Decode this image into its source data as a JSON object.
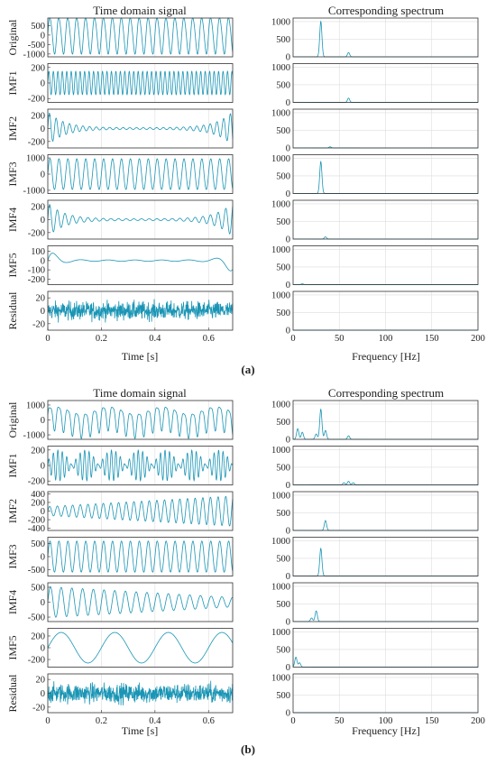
{
  "colors": {
    "signal": "#1a95b5",
    "grid": "#dddddd",
    "axis": "#333333"
  },
  "panels": [
    {
      "label": "(a)",
      "time_title": "Time domain signal",
      "spectrum_title": "Corresponding spectrum",
      "time_xlabel": "Time [s]",
      "spectrum_xlabel": "Frequency [Hz]",
      "time_xticks": [
        "0",
        "0.2",
        "0.4",
        "0.6"
      ],
      "spectrum_xticks": [
        "0",
        "50",
        "100",
        "150",
        "200"
      ],
      "spectrum_yticks": [
        "0",
        "500",
        "1000"
      ],
      "rows": [
        {
          "name": "Original",
          "yticks": [
            "500",
            "0",
            "-500",
            "-1000"
          ]
        },
        {
          "name": "IMF1",
          "yticks": [
            "200",
            "0",
            "-200"
          ]
        },
        {
          "name": "IMF2",
          "yticks": [
            "200",
            "0",
            "-200"
          ]
        },
        {
          "name": "IMF3",
          "yticks": [
            "1000",
            "0",
            "-1000"
          ]
        },
        {
          "name": "IMF4",
          "yticks": [
            "200",
            "0",
            "-200"
          ]
        },
        {
          "name": "IMF5",
          "yticks": [
            "100",
            "0",
            "-100",
            "-200"
          ]
        },
        {
          "name": "Residual",
          "yticks": [
            "20",
            "0",
            "-20"
          ]
        }
      ]
    },
    {
      "label": "(b)",
      "time_title": "Time domain signal",
      "spectrum_title": "Corresponding spectrum",
      "time_xlabel": "Time [s]",
      "spectrum_xlabel": "Frequency [Hz]",
      "time_xticks": [
        "0",
        "0.2",
        "0.4",
        "0.6"
      ],
      "spectrum_xticks": [
        "0",
        "50",
        "100",
        "150",
        "200"
      ],
      "spectrum_yticks": [
        "0",
        "500",
        "1000"
      ],
      "rows": [
        {
          "name": "Original",
          "yticks": [
            "1000",
            "0",
            "-1000"
          ]
        },
        {
          "name": "IMF1",
          "yticks": [
            "200",
            "0",
            "-200"
          ]
        },
        {
          "name": "IMF2",
          "yticks": [
            "400",
            "200",
            "0",
            "-200",
            "-400"
          ]
        },
        {
          "name": "IMF3",
          "yticks": [
            "500",
            "0",
            "-500"
          ]
        },
        {
          "name": "IMF4",
          "yticks": [
            "500",
            "0",
            "-500"
          ]
        },
        {
          "name": "IMF5",
          "yticks": [
            "200",
            "0",
            "-200"
          ]
        },
        {
          "name": "Residual",
          "yticks": [
            "20",
            "0",
            "-20"
          ]
        }
      ]
    }
  ],
  "chart_data": [
    {
      "panel": "(a)",
      "type": "line",
      "title": "Time domain signal",
      "xlabel": "Time [s]",
      "xlim": [
        0,
        0.69
      ],
      "series": [
        {
          "name": "Original",
          "ylim": [
            -1150,
            900
          ],
          "components": [
            {
              "amp": 950,
              "freq": 30
            },
            {
              "amp": 80,
              "freq": 60
            }
          ]
        },
        {
          "name": "IMF1",
          "ylim": [
            -250,
            250
          ],
          "components": [
            {
              "amp": 150,
              "freq": 60
            }
          ]
        },
        {
          "name": "IMF2",
          "ylim": [
            -300,
            300
          ],
          "edge_amp": 250,
          "edge_decay": 0.06,
          "freq": 40
        },
        {
          "name": "IMF3",
          "ylim": [
            -1200,
            1200
          ],
          "components": [
            {
              "amp": 950,
              "freq": 30
            }
          ]
        },
        {
          "name": "IMF4",
          "ylim": [
            -300,
            300
          ],
          "edge_amp": 250,
          "edge_decay": 0.06,
          "freq": 35
        },
        {
          "name": "IMF5",
          "ylim": [
            -260,
            160
          ],
          "edge_amp": 150,
          "edge_decay": 0.03,
          "freq": 10
        },
        {
          "name": "Residual",
          "ylim": [
            -30,
            30
          ],
          "noise_amp": 10
        }
      ]
    },
    {
      "panel": "(a)",
      "type": "line",
      "title": "Corresponding spectrum",
      "xlabel": "Frequency [Hz]",
      "xlim": [
        0,
        200
      ],
      "ylim": [
        0,
        1100
      ],
      "series": [
        {
          "name": "Original",
          "peaks": [
            {
              "x": 30,
              "y": 1000
            },
            {
              "x": 60,
              "y": 120
            }
          ]
        },
        {
          "name": "IMF1",
          "peaks": [
            {
              "x": 60,
              "y": 120
            }
          ]
        },
        {
          "name": "IMF2",
          "peaks": [
            {
              "x": 40,
              "y": 30
            }
          ]
        },
        {
          "name": "IMF3",
          "peaks": [
            {
              "x": 30,
              "y": 900
            }
          ]
        },
        {
          "name": "IMF4",
          "peaks": [
            {
              "x": 35,
              "y": 60
            }
          ]
        },
        {
          "name": "IMF5",
          "peaks": [
            {
              "x": 10,
              "y": 20
            }
          ]
        },
        {
          "name": "Residual",
          "peaks": []
        }
      ]
    },
    {
      "panel": "(b)",
      "type": "line",
      "title": "Time domain signal",
      "xlabel": "Time [s]",
      "xlim": [
        0,
        0.69
      ],
      "series": [
        {
          "name": "Original",
          "ylim": [
            -1300,
            1300
          ],
          "components": [
            {
              "amp": 800,
              "freq": 30
            },
            {
              "amp": 250,
              "freq": 5
            },
            {
              "amp": 200,
              "freq": 60
            }
          ]
        },
        {
          "name": "IMF1",
          "ylim": [
            -250,
            250
          ],
          "components": [
            {
              "amp": 180,
              "freq": 60
            }
          ],
          "am_freq": 5
        },
        {
          "name": "IMF2",
          "ylim": [
            -450,
            450
          ],
          "components": [
            {
              "amp": 350,
              "freq": 35
            }
          ],
          "ramp": [
            0.3,
            1.0
          ]
        },
        {
          "name": "IMF3",
          "ylim": [
            -750,
            750
          ],
          "components": [
            {
              "amp": 600,
              "freq": 30
            }
          ]
        },
        {
          "name": "IMF4",
          "ylim": [
            -650,
            650
          ],
          "components": [
            {
              "amp": 400,
              "freq": 25
            }
          ],
          "ramp": [
            1.3,
            0.4
          ]
        },
        {
          "name": "IMF5",
          "ylim": [
            -330,
            330
          ],
          "components": [
            {
              "amp": 260,
              "freq": 5
            }
          ]
        },
        {
          "name": "Residual",
          "ylim": [
            -28,
            28
          ],
          "noise_amp": 10
        }
      ]
    },
    {
      "panel": "(b)",
      "type": "line",
      "title": "Corresponding spectrum",
      "xlabel": "Frequency [Hz]",
      "xlim": [
        0,
        200
      ],
      "ylim": [
        0,
        1100
      ],
      "series": [
        {
          "name": "Original",
          "peaks": [
            {
              "x": 5,
              "y": 300
            },
            {
              "x": 10,
              "y": 200
            },
            {
              "x": 25,
              "y": 150
            },
            {
              "x": 30,
              "y": 850
            },
            {
              "x": 35,
              "y": 250
            },
            {
              "x": 60,
              "y": 100
            }
          ]
        },
        {
          "name": "IMF1",
          "peaks": [
            {
              "x": 55,
              "y": 60
            },
            {
              "x": 60,
              "y": 100
            },
            {
              "x": 65,
              "y": 60
            }
          ]
        },
        {
          "name": "IMF2",
          "peaks": [
            {
              "x": 35,
              "y": 280
            }
          ]
        },
        {
          "name": "IMF3",
          "peaks": [
            {
              "x": 30,
              "y": 780
            }
          ]
        },
        {
          "name": "IMF4",
          "peaks": [
            {
              "x": 20,
              "y": 100
            },
            {
              "x": 25,
              "y": 300
            }
          ]
        },
        {
          "name": "IMF5",
          "peaks": [
            {
              "x": 3,
              "y": 280
            },
            {
              "x": 7,
              "y": 120
            }
          ]
        },
        {
          "name": "Residual",
          "peaks": []
        }
      ]
    }
  ]
}
